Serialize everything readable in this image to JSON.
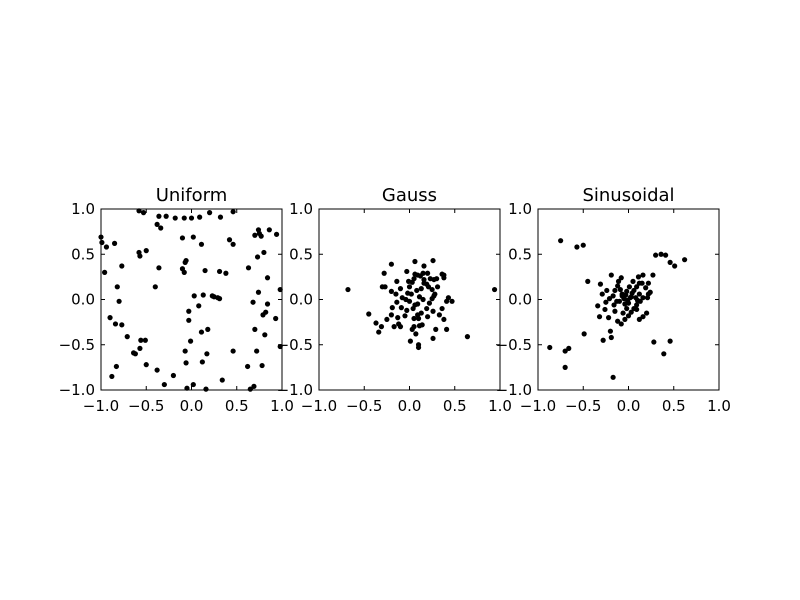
{
  "chart_data": [
    {
      "type": "scatter",
      "title": "Uniform",
      "xlim": [
        -1.0,
        1.0
      ],
      "ylim": [
        -1.0,
        1.0
      ],
      "xticks": [
        "−1.0",
        "−0.5",
        "0.0",
        "0.5",
        "1.0"
      ],
      "yticks": [
        "1.0",
        "0.5",
        "0.0",
        "−0.5",
        "−1.0"
      ],
      "grid": false,
      "marker_color": "#000000",
      "points": [
        [
          -1.0,
          0.69
        ],
        [
          -0.99,
          0.63
        ],
        [
          -0.94,
          0.58
        ],
        [
          -0.85,
          0.62
        ],
        [
          -0.96,
          0.3
        ],
        [
          -0.77,
          0.37
        ],
        [
          -0.82,
          0.14
        ],
        [
          -0.8,
          -0.02
        ],
        [
          -0.9,
          -0.2
        ],
        [
          -0.84,
          -0.27
        ],
        [
          -0.77,
          -0.28
        ],
        [
          -0.71,
          -0.41
        ],
        [
          -0.62,
          -0.6
        ],
        [
          -0.56,
          -0.45
        ],
        [
          -0.51,
          -0.45
        ],
        [
          -0.57,
          -0.54
        ],
        [
          -0.64,
          -0.59
        ],
        [
          -0.58,
          0.52
        ],
        [
          -0.57,
          0.48
        ],
        [
          -0.5,
          0.54
        ],
        [
          -0.58,
          0.98
        ],
        [
          -0.53,
          0.96
        ],
        [
          -0.38,
          0.83
        ],
        [
          -0.34,
          0.79
        ],
        [
          -0.28,
          0.92
        ],
        [
          -0.36,
          0.92
        ],
        [
          -0.18,
          0.9
        ],
        [
          -0.08,
          0.9
        ],
        [
          0.0,
          0.9
        ],
        [
          0.09,
          0.91
        ],
        [
          0.2,
          0.96
        ],
        [
          0.32,
          0.91
        ],
        [
          0.46,
          0.97
        ],
        [
          -0.1,
          0.68
        ],
        [
          0.02,
          0.69
        ],
        [
          0.11,
          0.61
        ],
        [
          -0.06,
          0.43
        ],
        [
          -0.07,
          0.41
        ],
        [
          -0.08,
          0.3
        ],
        [
          -0.1,
          0.34
        ],
        [
          -0.36,
          0.35
        ],
        [
          -0.4,
          0.14
        ],
        [
          0.15,
          0.32
        ],
        [
          0.31,
          0.31
        ],
        [
          0.38,
          0.29
        ],
        [
          0.42,
          0.66
        ],
        [
          0.46,
          0.61
        ],
        [
          0.63,
          0.35
        ],
        [
          0.7,
          0.71
        ],
        [
          0.74,
          0.77
        ],
        [
          0.75,
          0.73
        ],
        [
          0.77,
          0.7
        ],
        [
          0.86,
          0.77
        ],
        [
          0.94,
          0.72
        ],
        [
          0.73,
          0.47
        ],
        [
          0.8,
          0.52
        ],
        [
          0.84,
          0.24
        ],
        [
          0.98,
          0.11
        ],
        [
          0.74,
          0.08
        ],
        [
          0.84,
          -0.05
        ],
        [
          0.79,
          -0.17
        ],
        [
          0.82,
          -0.14
        ],
        [
          0.93,
          -0.21
        ],
        [
          0.68,
          -0.03
        ],
        [
          0.7,
          -0.33
        ],
        [
          0.81,
          -0.39
        ],
        [
          0.98,
          -0.52
        ],
        [
          0.72,
          -0.57
        ],
        [
          0.46,
          -0.57
        ],
        [
          0.62,
          -0.74
        ],
        [
          0.78,
          -0.73
        ],
        [
          0.69,
          -0.96
        ],
        [
          0.65,
          -0.99
        ],
        [
          0.34,
          -0.89
        ],
        [
          0.16,
          -0.99
        ],
        [
          0.02,
          -0.94
        ],
        [
          0.12,
          -0.69
        ],
        [
          0.17,
          -0.6
        ],
        [
          -0.06,
          -0.7
        ],
        [
          -0.07,
          -0.57
        ],
        [
          -0.01,
          -0.46
        ],
        [
          0.11,
          -0.36
        ],
        [
          0.18,
          -0.33
        ],
        [
          -0.03,
          -0.23
        ],
        [
          -0.03,
          -0.13
        ],
        [
          0.08,
          -0.07
        ],
        [
          0.13,
          0.05
        ],
        [
          0.03,
          0.04
        ],
        [
          0.23,
          0.04
        ],
        [
          0.25,
          0.03
        ],
        [
          0.29,
          0.02
        ],
        [
          0.31,
          0.01
        ],
        [
          -0.2,
          -0.84
        ],
        [
          -0.3,
          -0.94
        ],
        [
          -0.38,
          -0.78
        ],
        [
          -0.5,
          -0.72
        ],
        [
          -0.88,
          -0.85
        ],
        [
          -0.83,
          -0.74
        ],
        [
          -0.05,
          -0.98
        ]
      ]
    },
    {
      "type": "scatter",
      "title": "Gauss",
      "xlim": [
        -1.0,
        1.0
      ],
      "ylim": [
        -1.0,
        1.0
      ],
      "xticks": [
        "−1.0",
        "−0.5",
        "0.0",
        "0.5",
        "1.0"
      ],
      "yticks": [
        "1.0",
        "0.5",
        "0.0",
        "−0.5",
        "−1.0"
      ],
      "grid": false,
      "marker_color": "#000000",
      "points": [
        [
          -0.68,
          0.11
        ],
        [
          0.94,
          0.11
        ],
        [
          -0.45,
          -0.16
        ],
        [
          -0.37,
          -0.26
        ],
        [
          -0.34,
          -0.36
        ],
        [
          -0.31,
          -0.3
        ],
        [
          -0.25,
          -0.22
        ],
        [
          -0.3,
          0.14
        ],
        [
          -0.27,
          0.14
        ],
        [
          -0.28,
          0.29
        ],
        [
          -0.2,
          0.39
        ],
        [
          -0.14,
          0.2
        ],
        [
          -0.15,
          0.06
        ],
        [
          -0.1,
          0.12
        ],
        [
          -0.08,
          0.02
        ],
        [
          -0.14,
          -0.03
        ],
        [
          -0.19,
          -0.09
        ],
        [
          -0.2,
          -0.17
        ],
        [
          -0.13,
          -0.2
        ],
        [
          -0.12,
          -0.27
        ],
        [
          -0.1,
          -0.3
        ],
        [
          -0.05,
          -0.18
        ],
        [
          -0.03,
          -0.12
        ],
        [
          -0.04,
          0.0
        ],
        [
          -0.02,
          0.07
        ],
        [
          0.0,
          0.14
        ],
        [
          0.03,
          0.19
        ],
        [
          0.05,
          0.23
        ],
        [
          0.06,
          0.28
        ],
        [
          0.09,
          0.27
        ],
        [
          0.12,
          0.26
        ],
        [
          0.15,
          0.29
        ],
        [
          0.2,
          0.29
        ],
        [
          0.23,
          0.23
        ],
        [
          0.27,
          0.22
        ],
        [
          0.3,
          0.23
        ],
        [
          0.36,
          0.28
        ],
        [
          0.38,
          0.27
        ],
        [
          0.38,
          0.24
        ],
        [
          0.31,
          0.14
        ],
        [
          0.28,
          0.06
        ],
        [
          0.25,
          0.01
        ],
        [
          0.22,
          -0.04
        ],
        [
          0.19,
          -0.1
        ],
        [
          0.13,
          -0.15
        ],
        [
          0.09,
          -0.17
        ],
        [
          0.05,
          -0.21
        ],
        [
          0.05,
          -0.3
        ],
        [
          0.03,
          -0.33
        ],
        [
          0.07,
          -0.38
        ],
        [
          0.11,
          -0.29
        ],
        [
          0.14,
          -0.28
        ],
        [
          0.2,
          -0.19
        ],
        [
          0.26,
          -0.13
        ],
        [
          0.33,
          -0.17
        ],
        [
          0.38,
          -0.22
        ],
        [
          0.41,
          -0.33
        ],
        [
          0.36,
          -0.1
        ],
        [
          0.41,
          -0.02
        ],
        [
          0.47,
          -0.02
        ],
        [
          0.43,
          0.02
        ],
        [
          0.01,
          -0.46
        ],
        [
          0.1,
          -0.53
        ],
        [
          0.1,
          -0.5
        ],
        [
          0.26,
          -0.43
        ],
        [
          0.29,
          -0.33
        ],
        [
          0.64,
          -0.41
        ],
        [
          -0.17,
          -0.3
        ],
        [
          -0.09,
          -0.09
        ],
        [
          0.0,
          -0.02
        ],
        [
          0.02,
          0.06
        ],
        [
          0.08,
          0.1
        ],
        [
          0.11,
          0.03
        ],
        [
          0.13,
          0.12
        ],
        [
          0.16,
          0.18
        ],
        [
          0.19,
          0.17
        ],
        [
          0.21,
          0.14
        ],
        [
          0.25,
          0.11
        ],
        [
          0.27,
          0.04
        ],
        [
          0.09,
          -0.05
        ],
        [
          0.06,
          -0.06
        ],
        [
          0.15,
          0.0
        ],
        [
          -0.03,
          0.31
        ],
        [
          0.06,
          0.42
        ],
        [
          0.16,
          0.37
        ],
        [
          0.26,
          0.43
        ],
        [
          0.16,
          0.22
        ],
        [
          -0.2,
          0.09
        ],
        [
          0.04,
          -0.1
        ],
        [
          -0.01,
          0.2
        ],
        [
          0.1,
          -0.21
        ]
      ]
    },
    {
      "type": "scatter",
      "title": "Sinusoidal",
      "xlim": [
        -1.0,
        1.0
      ],
      "ylim": [
        -1.0,
        1.0
      ],
      "xticks": [
        "−1.0",
        "−0.5",
        "0.0",
        "0.5",
        "1.0"
      ],
      "yticks": [
        "1.0",
        "0.5",
        "0.0",
        "−0.5",
        "−1.0"
      ],
      "grid": false,
      "marker_color": "#000000",
      "points": [
        [
          -0.75,
          0.65
        ],
        [
          -0.5,
          0.6
        ],
        [
          -0.57,
          0.58
        ],
        [
          -0.45,
          0.2
        ],
        [
          -0.31,
          0.17
        ],
        [
          -0.29,
          0.06
        ],
        [
          -0.34,
          -0.07
        ],
        [
          -0.32,
          -0.19
        ],
        [
          -0.26,
          -0.11
        ],
        [
          -0.22,
          -0.2
        ],
        [
          -0.2,
          -0.35
        ],
        [
          -0.19,
          -0.42
        ],
        [
          -0.28,
          -0.45
        ],
        [
          -0.49,
          -0.38
        ],
        [
          -0.66,
          -0.54
        ],
        [
          -0.7,
          -0.57
        ],
        [
          -0.7,
          -0.75
        ],
        [
          -0.87,
          -0.53
        ],
        [
          -0.17,
          -0.86
        ],
        [
          -0.17,
          0.04
        ],
        [
          -0.15,
          0.1
        ],
        [
          -0.12,
          0.15
        ],
        [
          -0.11,
          0.2
        ],
        [
          -0.08,
          0.24
        ],
        [
          -0.09,
          0.11
        ],
        [
          -0.07,
          0.06
        ],
        [
          -0.05,
          0.01
        ],
        [
          -0.04,
          -0.05
        ],
        [
          -0.02,
          -0.1
        ],
        [
          0.0,
          -0.04
        ],
        [
          0.02,
          0.02
        ],
        [
          0.04,
          0.07
        ],
        [
          0.06,
          0.1
        ],
        [
          0.09,
          0.14
        ],
        [
          0.12,
          0.18
        ],
        [
          0.15,
          0.18
        ],
        [
          0.19,
          0.13
        ],
        [
          0.22,
          0.06
        ],
        [
          0.24,
          0.08
        ],
        [
          0.21,
          0.02
        ],
        [
          0.16,
          0.02
        ],
        [
          0.13,
          -0.02
        ],
        [
          0.09,
          -0.06
        ],
        [
          0.06,
          -0.1
        ],
        [
          0.03,
          -0.14
        ],
        [
          0.0,
          -0.18
        ],
        [
          -0.04,
          -0.22
        ],
        [
          -0.08,
          -0.27
        ],
        [
          -0.12,
          -0.24
        ],
        [
          -0.15,
          -0.13
        ],
        [
          -0.16,
          -0.06
        ],
        [
          -0.13,
          -0.02
        ],
        [
          -0.1,
          -0.02
        ],
        [
          -0.07,
          0.04
        ],
        [
          -0.02,
          0.09
        ],
        [
          0.01,
          0.14
        ],
        [
          0.05,
          0.2
        ],
        [
          0.11,
          0.25
        ],
        [
          0.16,
          0.27
        ],
        [
          0.22,
          0.18
        ],
        [
          0.27,
          0.27
        ],
        [
          0.3,
          0.49
        ],
        [
          0.36,
          0.5
        ],
        [
          0.41,
          0.49
        ],
        [
          0.46,
          0.41
        ],
        [
          0.51,
          0.37
        ],
        [
          0.62,
          0.44
        ],
        [
          0.46,
          -0.46
        ],
        [
          0.28,
          -0.47
        ],
        [
          0.39,
          -0.6
        ],
        [
          0.12,
          -0.22
        ],
        [
          0.16,
          -0.19
        ],
        [
          0.2,
          -0.15
        ],
        [
          0.09,
          -0.11
        ],
        [
          -0.24,
          0.1
        ],
        [
          -0.19,
          0.27
        ],
        [
          -0.21,
          0.01
        ],
        [
          -0.25,
          -0.03
        ],
        [
          -0.06,
          -0.15
        ],
        [
          0.03,
          0.03
        ],
        [
          0.08,
          0.02
        ],
        [
          -0.03,
          0.05
        ],
        [
          0.12,
          0.06
        ],
        [
          -0.01,
          -0.01
        ],
        [
          0.1,
          -0.01
        ]
      ]
    }
  ]
}
